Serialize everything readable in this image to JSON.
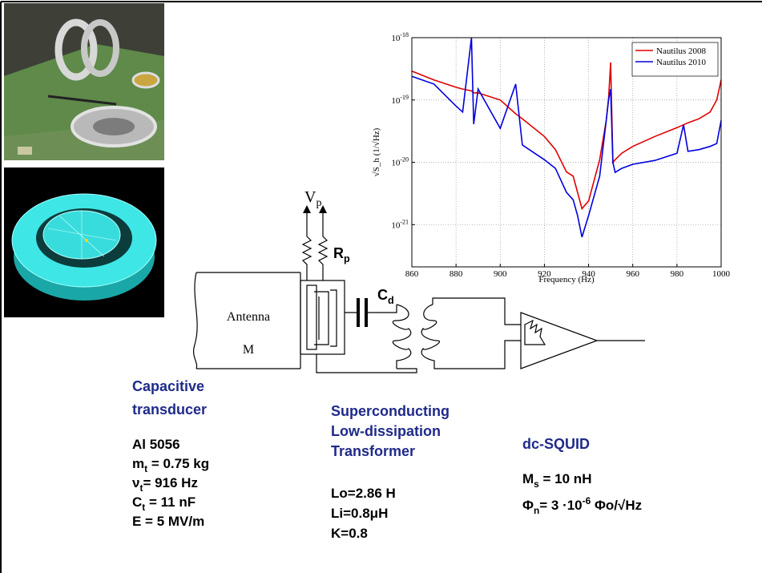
{
  "chart_data": {
    "type": "line",
    "xlabel": "Frequency (Hz)",
    "ylabel": "√S_h (1/√Hz)",
    "x": [
      860,
      870,
      880,
      883,
      887,
      888,
      890,
      900,
      907,
      910,
      920,
      925,
      930,
      933,
      935,
      937,
      940,
      945,
      948,
      949,
      950,
      951,
      952,
      955,
      960,
      970,
      980,
      983,
      985,
      990,
      995,
      998,
      1000
    ],
    "series": [
      {
        "name": "Nautilus 2008",
        "color": "#e00000",
        "values": [
          2.9e-19,
          2.1e-19,
          1.6e-19,
          1.5e-19,
          1.4e-19,
          1.3e-19,
          1.3e-19,
          1e-19,
          6e-20,
          5e-20,
          2.6e-20,
          1.6e-20,
          7e-21,
          6e-21,
          3.3e-21,
          1.8e-21,
          2.4e-21,
          1.1e-20,
          4.7e-20,
          1e-19,
          4e-19,
          1e-20,
          1.1e-20,
          1.4e-20,
          1.8e-20,
          2.6e-20,
          3.6e-20,
          4e-20,
          4.3e-20,
          5e-20,
          6.4e-20,
          1e-19,
          2.1e-19
        ]
      },
      {
        "name": "Nautilus 2010",
        "color": "#0000e0",
        "values": [
          2.4e-19,
          1.8e-19,
          8e-20,
          6.4e-20,
          1e-18,
          4.1e-20,
          1.5e-19,
          3.5e-20,
          1.8e-19,
          1.9e-20,
          1.1e-20,
          8e-21,
          3.3e-21,
          2.5e-21,
          1.4e-21,
          6.3e-22,
          1.4e-21,
          6e-21,
          4.7e-20,
          1e-19,
          1.5e-19,
          1e-20,
          6.9e-21,
          8e-21,
          9.3e-21,
          1.07e-20,
          1.4e-20,
          4e-20,
          1.5e-20,
          1.6e-20,
          1.8e-20,
          2e-20,
          4.7e-20
        ]
      }
    ],
    "xlim": [
      860,
      1000
    ],
    "xticks": [
      860,
      880,
      900,
      920,
      940,
      960,
      980,
      1000
    ],
    "ylim": [
      2.1e-22,
      1e-18
    ],
    "yticks": [
      {
        "value": 1e-21,
        "label": "10-21"
      },
      {
        "value": 1e-20,
        "label": "10-20"
      },
      {
        "value": 1e-19,
        "label": "10-19"
      },
      {
        "value": 1e-18,
        "label": "10-18"
      }
    ],
    "ylog": true,
    "grid": true,
    "legend": "upper right"
  },
  "circuit": {
    "vp": [
      {
        "t": "V"
      },
      {
        "sub": "p"
      }
    ],
    "rp": [
      {
        "t": "R"
      },
      {
        "sub": "p"
      }
    ],
    "cd": [
      {
        "t": "C"
      },
      {
        "sub": "d"
      }
    ],
    "antenna": "Antenna",
    "mass": "M"
  },
  "transducer": {
    "heading": [
      "Capacitive",
      "transducer"
    ],
    "specs": [
      [
        {
          "t": "Al 5056"
        }
      ],
      [
        {
          "t": "m"
        },
        {
          "sub": "t"
        },
        {
          "t": " = 0.75 kg"
        }
      ],
      [
        {
          "t": "ν"
        },
        {
          "sub": "t"
        },
        {
          "t": "= 916 Hz"
        }
      ],
      [
        {
          "t": "C"
        },
        {
          "sub": "t"
        },
        {
          "t": " = 11 nF"
        }
      ],
      [
        {
          "t": "E = 5 MV/m"
        }
      ]
    ]
  },
  "transformer": {
    "heading": [
      "Superconducting",
      "Low-dissipation",
      "Transformer"
    ],
    "specs": [
      [
        {
          "t": "Lo=2.86 H"
        }
      ],
      [
        {
          "t": "Li=0.8μH"
        }
      ],
      [
        {
          "t": "K=0.8"
        }
      ]
    ]
  },
  "squid": {
    "heading": "dc-SQUID",
    "specs": [
      [
        {
          "t": "M"
        },
        {
          "sub": "s"
        },
        {
          "t": " = 10 nH"
        }
      ],
      [
        {
          "t": "Φ"
        },
        {
          "sub": "n"
        },
        {
          "t": "= 3 ·10"
        },
        {
          "sup": "-6"
        },
        {
          "t": " Φo/√Hz"
        }
      ]
    ]
  }
}
